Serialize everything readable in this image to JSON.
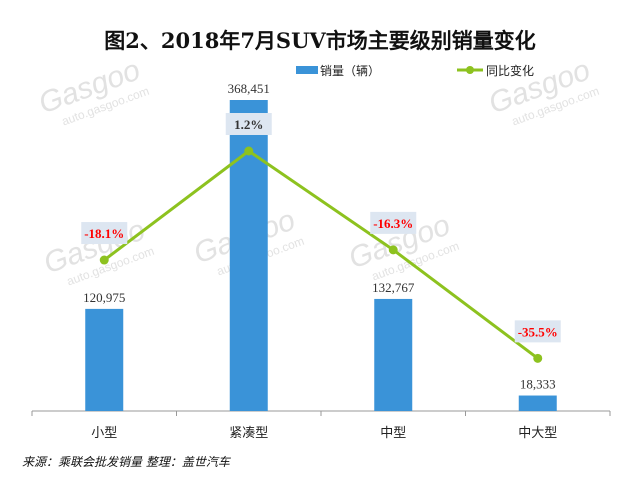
{
  "chart_data": {
    "type": "bar",
    "title": "图2、2018年7月SUV市场主要级别销量变化",
    "categories": [
      "小型",
      "紧凑型",
      "中型",
      "中大型"
    ],
    "series": [
      {
        "name": "销量（辆）",
        "type": "bar",
        "values": [
          120975,
          368451,
          132767,
          18333
        ],
        "labels": [
          "120,975",
          "368,451",
          "132,767",
          "18,333"
        ],
        "color": "#3a93d8"
      },
      {
        "name": "同比变化",
        "type": "line",
        "axis": "secondary",
        "values": [
          -18.1,
          1.2,
          -16.3,
          -35.5
        ],
        "labels": [
          "-18.1%",
          "1.2%",
          "-16.3%",
          "-35.5%"
        ],
        "color": "#8dc21f",
        "negative_label_color": "#ff0000"
      }
    ],
    "legend": "top",
    "grid": false,
    "axes_visible": {
      "y": false,
      "y2": false
    }
  },
  "source": "来源：乘联会批发销量   整理：盖世汽车",
  "watermark": {
    "brand": "Gasgoo",
    "cn": "盖世汽车",
    "url": "auto.gasgoo.com"
  }
}
